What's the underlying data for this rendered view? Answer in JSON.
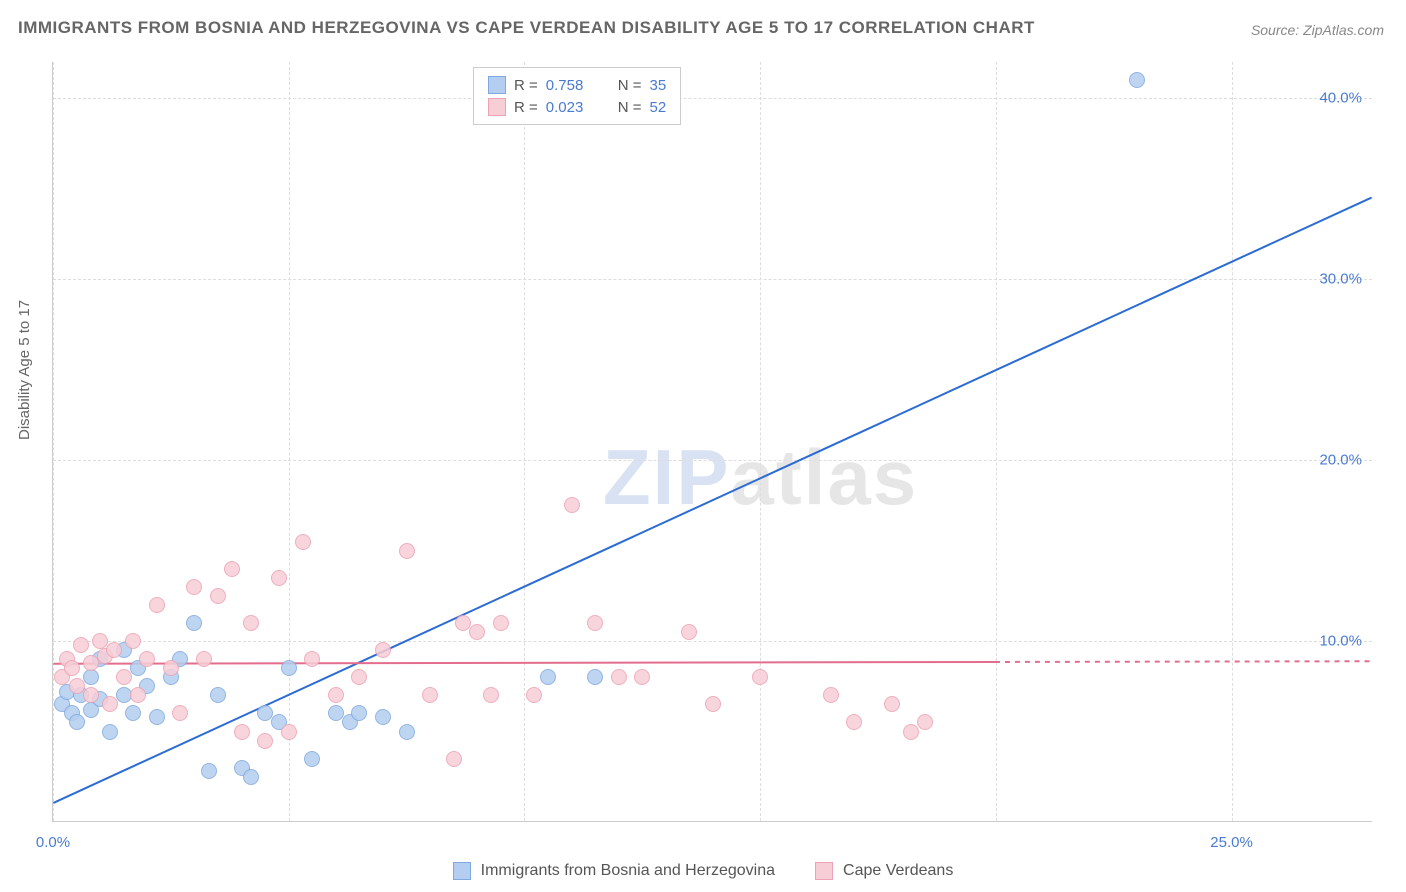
{
  "title": "IMMIGRANTS FROM BOSNIA AND HERZEGOVINA VS CAPE VERDEAN DISABILITY AGE 5 TO 17 CORRELATION CHART",
  "source": "Source: ZipAtlas.com",
  "y_axis_label": "Disability Age 5 to 17",
  "watermark_a": "ZIP",
  "watermark_b": "atlas",
  "chart": {
    "type": "scatter",
    "xlim": [
      0,
      28
    ],
    "ylim": [
      0,
      42
    ],
    "x_ticks": [
      0,
      5,
      10,
      15,
      20,
      25
    ],
    "x_tick_labels": [
      "0.0%",
      "",
      "",
      "",
      "",
      "25.0%"
    ],
    "y_ticks": [
      10,
      20,
      30,
      40
    ],
    "y_tick_labels": [
      "10.0%",
      "20.0%",
      "30.0%",
      "40.0%"
    ],
    "background_color": "#ffffff",
    "grid_color": "#dddddd",
    "point_radius": 8,
    "point_stroke_width": 1.5,
    "series": [
      {
        "name": "Immigrants from Bosnia and Herzegovina",
        "color_fill": "#b3cef0",
        "color_stroke": "#7fa9de",
        "r": "0.758",
        "n": "35",
        "regression": {
          "x1": 0,
          "y1": 1.0,
          "x2": 28,
          "y2": 34.5,
          "color": "#2b6bd4",
          "width": 2,
          "dash": "none"
        },
        "points": [
          [
            0.2,
            6.5
          ],
          [
            0.3,
            7.2
          ],
          [
            0.4,
            6.0
          ],
          [
            0.5,
            5.5
          ],
          [
            0.6,
            7.0
          ],
          [
            0.8,
            8.0
          ],
          [
            0.8,
            6.2
          ],
          [
            1.0,
            9.0
          ],
          [
            1.0,
            6.8
          ],
          [
            1.2,
            5.0
          ],
          [
            1.5,
            9.5
          ],
          [
            1.5,
            7.0
          ],
          [
            1.7,
            6.0
          ],
          [
            1.8,
            8.5
          ],
          [
            2.0,
            7.5
          ],
          [
            2.2,
            5.8
          ],
          [
            2.5,
            8.0
          ],
          [
            2.7,
            9.0
          ],
          [
            3.0,
            11.0
          ],
          [
            3.3,
            2.8
          ],
          [
            3.5,
            7.0
          ],
          [
            4.0,
            3.0
          ],
          [
            4.2,
            2.5
          ],
          [
            4.5,
            6.0
          ],
          [
            4.8,
            5.5
          ],
          [
            5.0,
            8.5
          ],
          [
            5.5,
            3.5
          ],
          [
            6.0,
            6.0
          ],
          [
            6.3,
            5.5
          ],
          [
            6.5,
            6.0
          ],
          [
            7.0,
            5.8
          ],
          [
            7.5,
            5.0
          ],
          [
            10.5,
            8.0
          ],
          [
            11.5,
            8.0
          ],
          [
            23.0,
            41.0
          ]
        ]
      },
      {
        "name": "Cape Verdeans",
        "color_fill": "#f7cdd6",
        "color_stroke": "#eca2b3",
        "r": "0.023",
        "n": "52",
        "regression": {
          "x1": 0,
          "y1": 8.7,
          "x2": 20,
          "y2": 8.8,
          "color": "#e36d8c",
          "width": 2,
          "dash": "4,4",
          "solid_until": 20
        },
        "points": [
          [
            0.2,
            8.0
          ],
          [
            0.3,
            9.0
          ],
          [
            0.4,
            8.5
          ],
          [
            0.5,
            7.5
          ],
          [
            0.6,
            9.8
          ],
          [
            0.8,
            8.8
          ],
          [
            0.8,
            7.0
          ],
          [
            1.0,
            10.0
          ],
          [
            1.1,
            9.2
          ],
          [
            1.2,
            6.5
          ],
          [
            1.3,
            9.5
          ],
          [
            1.5,
            8.0
          ],
          [
            1.7,
            10.0
          ],
          [
            1.8,
            7.0
          ],
          [
            2.0,
            9.0
          ],
          [
            2.2,
            12.0
          ],
          [
            2.5,
            8.5
          ],
          [
            2.7,
            6.0
          ],
          [
            3.0,
            13.0
          ],
          [
            3.2,
            9.0
          ],
          [
            3.5,
            12.5
          ],
          [
            3.8,
            14.0
          ],
          [
            4.0,
            5.0
          ],
          [
            4.2,
            11.0
          ],
          [
            4.5,
            4.5
          ],
          [
            4.8,
            13.5
          ],
          [
            5.0,
            5.0
          ],
          [
            5.3,
            15.5
          ],
          [
            5.5,
            9.0
          ],
          [
            6.0,
            7.0
          ],
          [
            6.5,
            8.0
          ],
          [
            7.0,
            9.5
          ],
          [
            7.5,
            15.0
          ],
          [
            8.0,
            7.0
          ],
          [
            8.5,
            3.5
          ],
          [
            8.7,
            11.0
          ],
          [
            9.0,
            10.5
          ],
          [
            9.3,
            7.0
          ],
          [
            9.5,
            11.0
          ],
          [
            10.2,
            7.0
          ],
          [
            11.0,
            17.5
          ],
          [
            11.5,
            11.0
          ],
          [
            12.0,
            8.0
          ],
          [
            12.5,
            8.0
          ],
          [
            13.5,
            10.5
          ],
          [
            14.0,
            6.5
          ],
          [
            15.0,
            8.0
          ],
          [
            16.5,
            7.0
          ],
          [
            17.0,
            5.5
          ],
          [
            17.8,
            6.5
          ],
          [
            18.2,
            5.0
          ],
          [
            18.5,
            5.5
          ]
        ]
      }
    ]
  },
  "legend_labels": {
    "r": "R =",
    "n": "N ="
  }
}
